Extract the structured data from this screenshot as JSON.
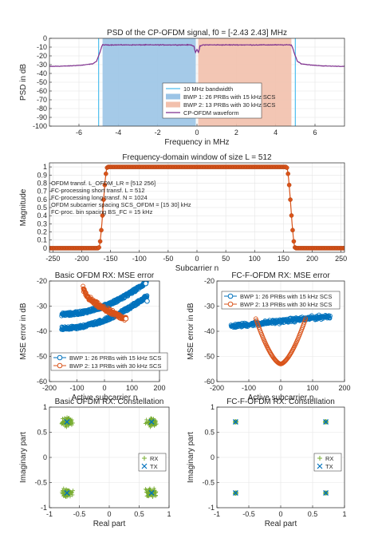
{
  "colors": {
    "bwp1": "#0072BD",
    "bwp2": "#D95319",
    "bwp1_fill": "#9BC4E6",
    "bwp2_fill": "#F2C0AC",
    "waveform": "#7E2F8E",
    "bandwidth_line": "#4DBEEE",
    "window_marker": "#D95319",
    "rx": "#77AC30",
    "tx": "#0072BD",
    "grid": "#E5E5E5",
    "axis": "#262626"
  },
  "chart_data": [
    {
      "id": "psd",
      "type": "area",
      "title": "PSD of the CP-OFDM signal, f0 = [-2.43 2.43] MHz",
      "xlabel": "Frequency in MHz",
      "ylabel": "PSD in dB",
      "xlim": [
        -7.5,
        7.5
      ],
      "ylim": [
        -100,
        0
      ],
      "xticks": [
        -6,
        -4,
        -2,
        0,
        2,
        4,
        6
      ],
      "yticks": [
        -100,
        -90,
        -80,
        -70,
        -60,
        -50,
        -40,
        -30,
        -20,
        -10,
        0
      ],
      "grid": true,
      "legend_position": "center-right",
      "legend": [
        "10 MHz bandwidth",
        "BWP 1: 26 PRBs with 15 kHz SCS",
        "BWP 2: 13 PRBs with 30 kHz SCS",
        "CP-OFDM waveform"
      ],
      "bandwidth_edges": [
        -5,
        5
      ],
      "bwp1_band": [
        -4.8,
        -0.06
      ],
      "bwp2_band": [
        0.06,
        4.8
      ],
      "waveform": {
        "x": [
          -7.5,
          -6.5,
          -5.8,
          -5.3,
          -5.1,
          -4.95,
          -4.85,
          -4.8,
          -3,
          -1,
          -0.3,
          -0.15,
          -0.08,
          0,
          0.08,
          0.15,
          0.3,
          1,
          3,
          4.8,
          4.85,
          4.95,
          5.1,
          5.3,
          5.8,
          6.5,
          7.5
        ],
        "y": [
          -32,
          -31.5,
          -30.5,
          -29,
          -26,
          -17,
          -10,
          -7.5,
          -7.5,
          -7.5,
          -7.5,
          -9,
          -16,
          -13,
          -16,
          -9,
          -7.5,
          -7.5,
          -7.5,
          -7.5,
          -10,
          -17,
          -26,
          -29,
          -30.5,
          -31.5,
          -32
        ]
      }
    },
    {
      "id": "window",
      "type": "scatter",
      "title": "Frequency-domain window of size L = 512",
      "xlabel": "Subcarrier n",
      "ylabel": "Magnitude",
      "xlim": [
        -256,
        256
      ],
      "ylim": [
        -0.05,
        1.05
      ],
      "xticks": [
        -250,
        -200,
        -150,
        -100,
        -50,
        0,
        50,
        100,
        150,
        200,
        250
      ],
      "yticks": [
        0,
        0.1,
        0.2,
        0.3,
        0.4,
        0.5,
        0.6,
        0.7,
        0.8,
        0.9,
        1
      ],
      "grid": true,
      "annotation": [
        "OFDM transf. L_OFDM_LR = [512 256]",
        "FC-processing short transf. L = 512",
        "FC-processing long transf. N = 1024",
        "OFDM subcarrier spacing SCS_OFDM = [15 30] kHz",
        "FC-proc. bin spacing BS_FC = 15 kHz"
      ],
      "window_shape": {
        "flat_start": -155,
        "flat_end": 155,
        "transition_width": 16,
        "low": 0,
        "high": 1
      }
    },
    {
      "id": "mse-basic",
      "type": "scatter",
      "title": "Basic OFDM RX: MSE error",
      "xlabel": "Active subcarrier n",
      "ylabel": "MSE error in dB",
      "xlim": [
        -200,
        200
      ],
      "ylim": [
        -60,
        -20
      ],
      "xticks": [
        -200,
        -100,
        0,
        100,
        200
      ],
      "yticks": [
        -60,
        -50,
        -40,
        -30,
        -20
      ],
      "grid": true,
      "legend_position": "bottom",
      "series": [
        {
          "name": "BWP 1: 26 PRBs with 15 kHz SCS",
          "x_range": [
            -156,
            155
          ],
          "y_start": -36,
          "y_end": -23,
          "spread": 3.5
        },
        {
          "name": "BWP 2: 13 PRBs with 30 kHz SCS",
          "x_range": [
            -78,
            78
          ],
          "y_start": -22,
          "y_end": -35,
          "spread": 1.5
        }
      ],
      "endpoints": [
        {
          "x": 150,
          "y": -21
        },
        {
          "x": 155,
          "y": -28
        },
        {
          "x": 78,
          "y": -35
        }
      ]
    },
    {
      "id": "mse-fc",
      "type": "scatter",
      "title": "FC-F-OFDM RX: MSE error",
      "xlabel": "Active subcarrier n",
      "ylabel": "MSE error in dB",
      "xlim": [
        -200,
        200
      ],
      "ylim": [
        -60,
        -20
      ],
      "xticks": [
        -200,
        -100,
        0,
        100,
        200
      ],
      "yticks": [
        -60,
        -50,
        -40,
        -30,
        -20
      ],
      "grid": true,
      "legend_position": "top-right",
      "series": [
        {
          "name": "BWP 1: 26 PRBs with 15 kHz SCS",
          "x_range": [
            -156,
            155
          ],
          "y_start": -38,
          "y_end": -34,
          "spread": 1.2
        },
        {
          "name": "BWP 2: 13 PRBs with 30 kHz SCS",
          "x_range": [
            -78,
            78
          ],
          "y_edge": -35,
          "y_center": -53
        }
      ]
    },
    {
      "id": "const-basic",
      "type": "scatter",
      "title": "Basic OFDM RX: Constellation",
      "xlabel": "Real part",
      "ylabel": "Imaginary part",
      "xlim": [
        -1,
        1
      ],
      "ylim": [
        -1,
        1
      ],
      "xticks": [
        -1,
        -0.5,
        0,
        0.5,
        1
      ],
      "yticks": [
        -1,
        -0.5,
        0,
        0.5,
        1
      ],
      "grid": true,
      "legend_position": "right",
      "legend": [
        "RX",
        "TX"
      ],
      "tx_points": [
        [
          -0.707,
          0.707
        ],
        [
          0.707,
          0.707
        ],
        [
          -0.707,
          -0.707
        ],
        [
          0.707,
          -0.707
        ]
      ],
      "rx_spread": 0.12
    },
    {
      "id": "const-fc",
      "type": "scatter",
      "title": "FC-F-OFDM RX: Constellation",
      "xlabel": "Real part",
      "ylabel": "Imaginary part",
      "xlim": [
        -1,
        1
      ],
      "ylim": [
        -1,
        1
      ],
      "xticks": [
        -1,
        -0.5,
        0,
        0.5,
        1
      ],
      "yticks": [
        -1,
        -0.5,
        0,
        0.5,
        1
      ],
      "grid": true,
      "legend_position": "right",
      "legend": [
        "RX",
        "TX"
      ],
      "tx_points": [
        [
          -0.707,
          0.707
        ],
        [
          0.707,
          0.707
        ],
        [
          -0.707,
          -0.707
        ],
        [
          0.707,
          -0.707
        ]
      ],
      "rx_spread": 0.015
    }
  ]
}
